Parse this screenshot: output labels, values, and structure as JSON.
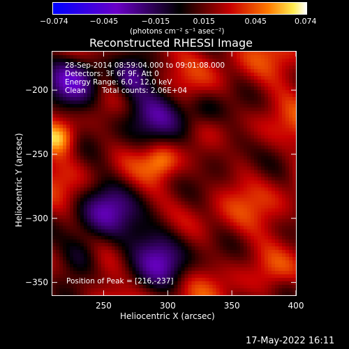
{
  "colorbar": {
    "tick_labels": [
      "−0.074",
      "−0.045",
      "−0.015",
      "0.015",
      "0.045",
      "0.074"
    ],
    "tick_values": [
      -0.074,
      -0.045,
      -0.015,
      0.015,
      0.045,
      0.074
    ],
    "unit_label": "(photons cm⁻² s⁻¹ asec⁻²)",
    "colors": {
      "low": "#0000ff",
      "mid_low": "#6a00c8",
      "zero": "#000000",
      "mid": "#c80000",
      "high_mid": "#ff7a00",
      "high": "#ffffff"
    }
  },
  "info": {
    "time_range": "28-Sep-2014 08:59:04.000 to 09:01:08.000",
    "detectors": "Detectors: 3F 6F 9F, Att 0",
    "energy_range": "Energy Range: 6.0 - 12.0 keV",
    "method": "Clean",
    "total_counts": "Total counts: 2.06E+04",
    "peak": "Position of Peak = [216,-237]"
  },
  "footer": {
    "date_stamp": "17-May-2022 16:11"
  },
  "chart_data": {
    "type": "heatmap",
    "title": "Reconstructed RHESSI Image",
    "xlabel": "Heliocentric X (arcsec)",
    "ylabel": "Heliocentric Y (arcsec)",
    "xlim": [
      210,
      400
    ],
    "ylim": [
      -360,
      -170
    ],
    "x_ticks": [
      250,
      300,
      350,
      400
    ],
    "x_tick_labels": [
      "250",
      "300",
      "350",
      "400"
    ],
    "y_ticks": [
      -200,
      -250,
      -300,
      -350
    ],
    "y_tick_labels": [
      "−200",
      "−250",
      "−300",
      "−350"
    ],
    "value_range": [
      -0.074,
      0.074
    ],
    "sources": [
      {
        "x": 216,
        "y": -237,
        "value": 0.074
      },
      {
        "x": 295,
        "y": -255,
        "value": 0.06
      }
    ],
    "grid": false,
    "legend": "colorbar-top"
  }
}
